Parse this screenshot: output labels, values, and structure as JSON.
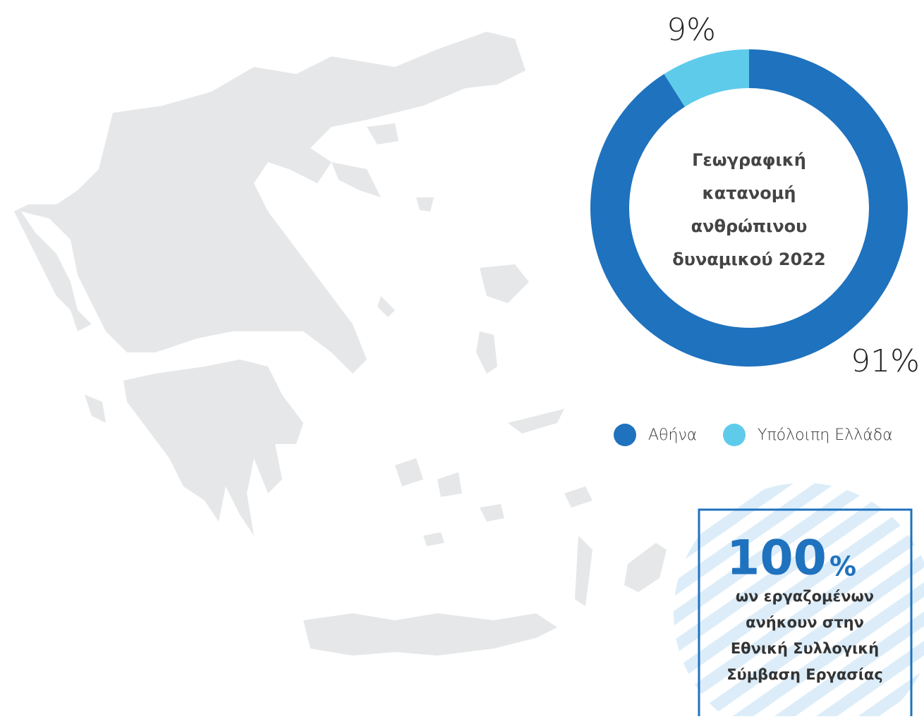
{
  "chart_data": {
    "type": "pie",
    "donut": true,
    "title_lines": [
      "Γεωγραφική",
      "κατανομή",
      "ανθρώπινου",
      "δυναμικού 2022"
    ],
    "categories": [
      "Αθήνα",
      "Υπόλοιπη Ελλάδα"
    ],
    "values": [
      91,
      9
    ],
    "value_labels": [
      "91%",
      "9%"
    ],
    "colors": [
      "#1f72be",
      "#5ecbea"
    ]
  },
  "highlight": {
    "number": "100",
    "unit": "%",
    "lines": [
      "ων εργαζομένων",
      "ανήκουν στην",
      "Εθνική Συλλογική",
      "Σύμβαση Εργασίας"
    ]
  }
}
